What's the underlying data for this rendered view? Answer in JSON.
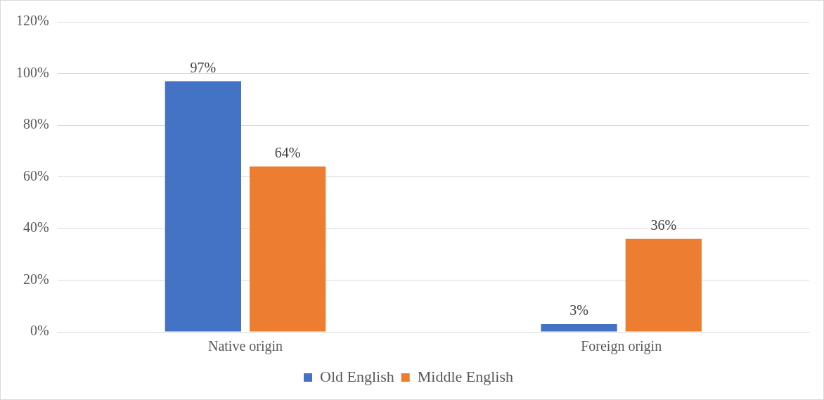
{
  "chart_data": {
    "type": "bar",
    "categories": [
      "Native origin",
      "Foreign origin"
    ],
    "series": [
      {
        "name": "Old English",
        "color": "#4472c4",
        "values": [
          97,
          3
        ],
        "value_labels": [
          "97%",
          "3%"
        ]
      },
      {
        "name": "Middle English",
        "color": "#ed7d31",
        "values": [
          64,
          36
        ],
        "value_labels": [
          "64%",
          "36%"
        ]
      }
    ],
    "ylim": [
      0,
      120
    ],
    "yticks": [
      {
        "value": 0,
        "label": "0%"
      },
      {
        "value": 20,
        "label": "20%"
      },
      {
        "value": 40,
        "label": "40%"
      },
      {
        "value": 60,
        "label": "60%"
      },
      {
        "value": 80,
        "label": "80%"
      },
      {
        "value": 100,
        "label": "100%"
      },
      {
        "value": 120,
        "label": "120%"
      }
    ],
    "grid": "y",
    "legend": "bottom"
  }
}
